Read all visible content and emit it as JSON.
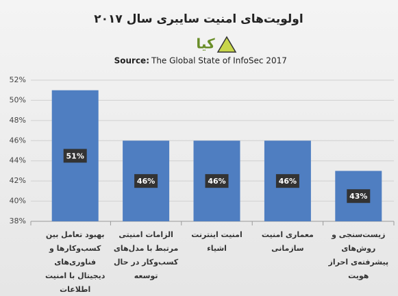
{
  "chart_data": {
    "type": "bar",
    "title": "اولویت‌های امنیت سایبری سال ۲۰۱۷",
    "logo_text": "کیا",
    "subtitle_label": "Source:",
    "subtitle": "The Global State of InfoSec 2017",
    "categories": [
      "بهبود تعامل بین کسب‌وکارها و فناوری‌های دیجیتال با امنیت اطلاعات",
      "الزامات امنیتی مرتبط با مدل‌های کسب‌وکار در حال توسعه",
      "امنیت اینترنت اشیاء",
      "معماری امنیت سازمانی",
      "زیست‌سنجی و روش‌های پیشرفته‌ی احراز هویت"
    ],
    "values": [
      51,
      46,
      46,
      46,
      43
    ],
    "value_labels": [
      "51%",
      "46%",
      "46%",
      "46%",
      "43%"
    ],
    "color": "#4f7ec1",
    "ylim": [
      38,
      52
    ],
    "yticks": [
      {
        "value": 38,
        "label": "38%"
      },
      {
        "value": 40,
        "label": "40%"
      },
      {
        "value": 42,
        "label": "42%"
      },
      {
        "value": 44,
        "label": "44%"
      },
      {
        "value": 46,
        "label": "46%"
      },
      {
        "value": 48,
        "label": "48%"
      },
      {
        "value": 50,
        "label": "50%"
      },
      {
        "value": 52,
        "label": "52%"
      }
    ],
    "grid": true
  }
}
